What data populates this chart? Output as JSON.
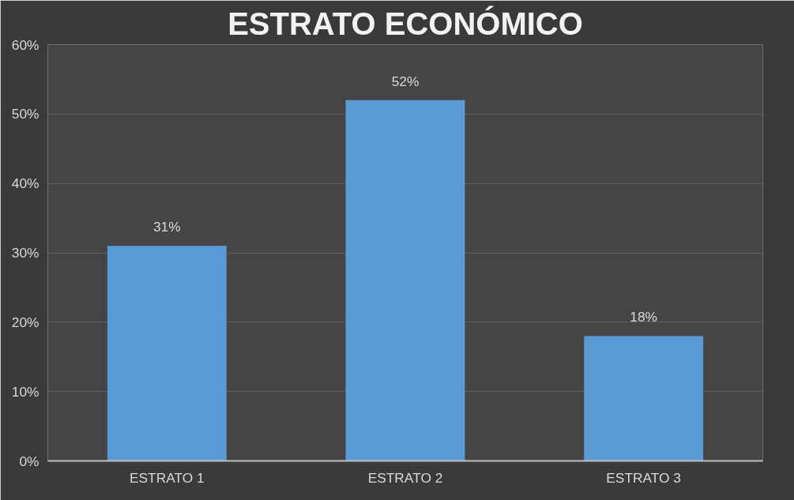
{
  "chart_data": {
    "type": "bar",
    "title": "ESTRATO ECONÓMICO",
    "categories": [
      "ESTRATO 1",
      "ESTRATO 2",
      "ESTRATO 3"
    ],
    "values": [
      31,
      52,
      18
    ],
    "color": "#5b9bd5",
    "value_labels": [
      "31%",
      "52%",
      "18%"
    ],
    "ylim": [
      0,
      60
    ],
    "yticks": [
      {
        "value": 0,
        "label": "0%"
      },
      {
        "value": 10,
        "label": "10%"
      },
      {
        "value": 20,
        "label": "20%"
      },
      {
        "value": 30,
        "label": "30%"
      },
      {
        "value": 40,
        "label": "40%"
      },
      {
        "value": 50,
        "label": "50%"
      },
      {
        "value": 60,
        "label": "60%"
      }
    ],
    "grid": "y"
  }
}
